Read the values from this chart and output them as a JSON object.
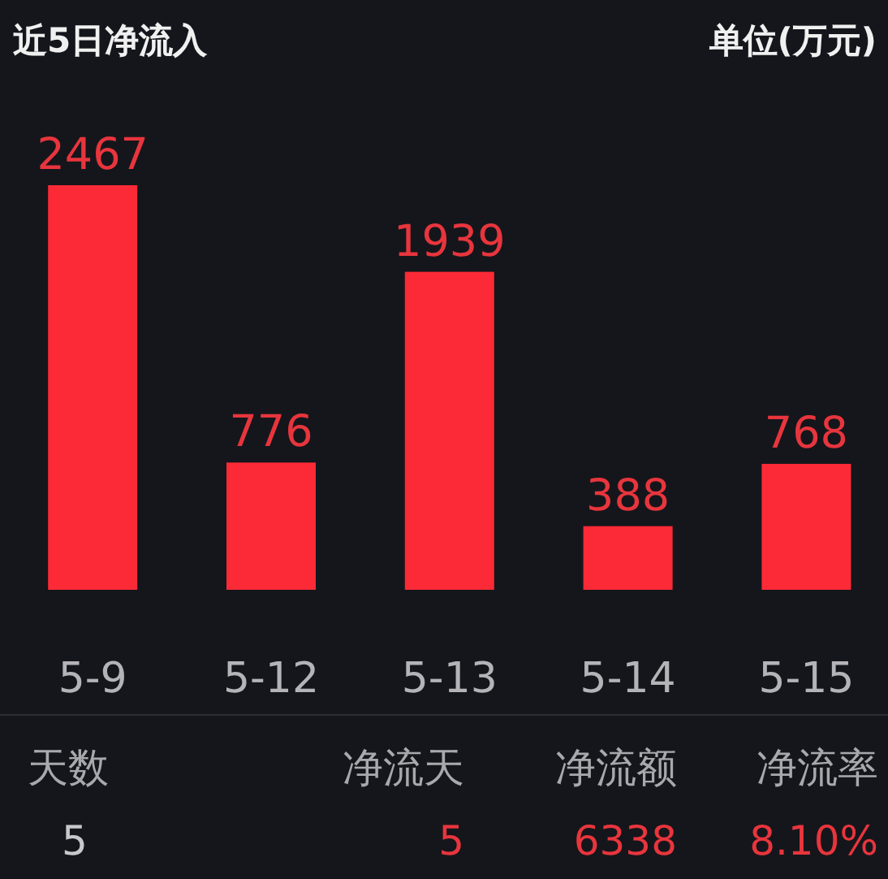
{
  "chart_data": {
    "type": "bar",
    "title": "近5日净流入",
    "subtitle": "单位(万元)",
    "categories": [
      "5-9",
      "5-12",
      "5-13",
      "5-14",
      "5-15"
    ],
    "values": [
      2467,
      776,
      1939,
      388,
      768
    ],
    "color": "#fc2a36",
    "data_labels": true,
    "annotations": [
      "天数",
      "净流天",
      "净流额",
      "净流率",
      "5",
      "5",
      "6338",
      "8.10%"
    ]
  }
}
